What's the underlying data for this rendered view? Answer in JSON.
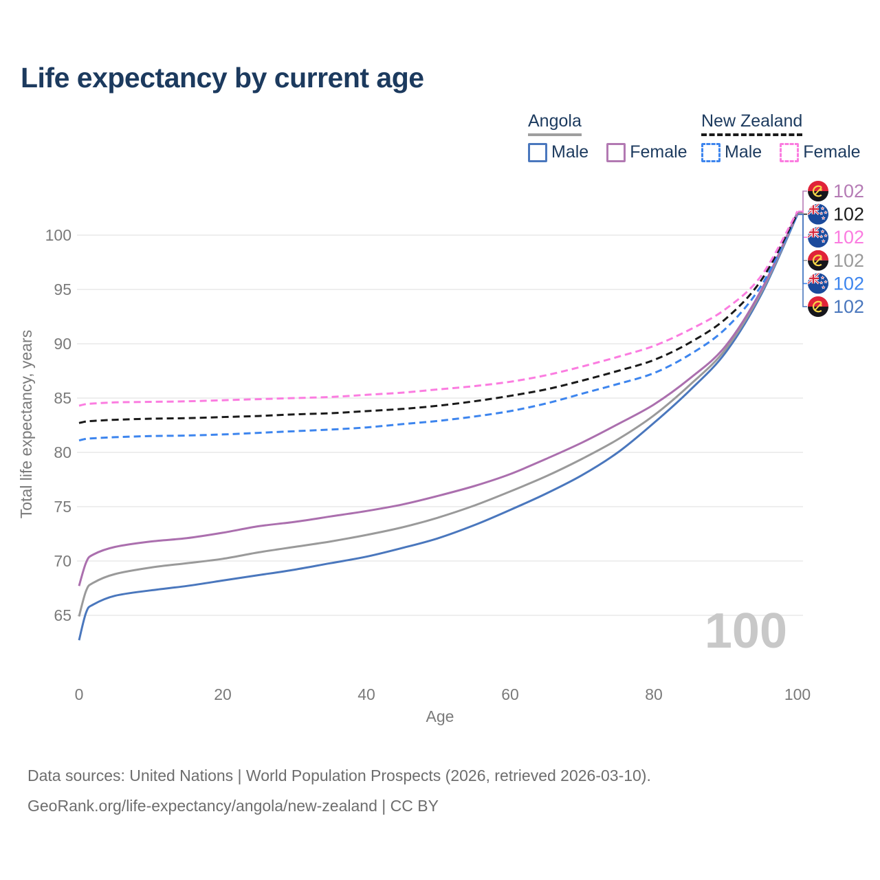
{
  "title": "Life expectancy by current age",
  "legend": {
    "groups": [
      {
        "label": "Angola",
        "line_style": "solid",
        "line_color": "#9e9e9e",
        "items": [
          {
            "label": "Male",
            "color": "#4a77bd",
            "dashed": false
          },
          {
            "label": "Female",
            "color": "#b279b2",
            "dashed": false
          }
        ]
      },
      {
        "label": "New Zealand",
        "line_style": "dashed",
        "line_color": "#1a1a1a",
        "items": [
          {
            "label": "Male",
            "color": "#3d85ee",
            "dashed": true
          },
          {
            "label": "Female",
            "color": "#fb7ce0",
            "dashed": true
          }
        ]
      }
    ]
  },
  "chart_data": {
    "type": "line",
    "title": "Life expectancy by current age",
    "xlabel": "Age",
    "ylabel": "Total life expectancy, years",
    "xlim": [
      0,
      100
    ],
    "ylim": [
      62,
      103
    ],
    "xticks": [
      0,
      20,
      40,
      60,
      80,
      100
    ],
    "yticks": [
      65,
      70,
      75,
      80,
      85,
      90,
      95,
      100
    ],
    "grid": "horizontal",
    "legend_position": "top-right",
    "x": [
      0,
      1,
      2,
      5,
      10,
      15,
      20,
      25,
      30,
      35,
      40,
      45,
      50,
      55,
      60,
      65,
      70,
      75,
      80,
      85,
      90,
      95,
      100
    ],
    "series": [
      {
        "name": "Angola Male",
        "country": "Angola",
        "sex": "Male",
        "color": "#4a77bd",
        "dashed": false,
        "values": [
          62.7,
          65.3,
          66.0,
          66.8,
          67.3,
          67.7,
          68.2,
          68.7,
          69.2,
          69.8,
          70.4,
          71.2,
          72.1,
          73.3,
          74.7,
          76.2,
          77.9,
          80.0,
          82.7,
          85.7,
          89.2,
          94.6,
          101.9
        ]
      },
      {
        "name": "Angola Both sexes",
        "country": "Angola",
        "sex": "Both",
        "color": "#9a9a9a",
        "dashed": false,
        "values": [
          64.9,
          67.3,
          68.0,
          68.8,
          69.4,
          69.8,
          70.2,
          70.8,
          71.3,
          71.8,
          72.4,
          73.1,
          74.0,
          75.1,
          76.4,
          77.8,
          79.4,
          81.2,
          83.4,
          86.2,
          89.5,
          94.8,
          102.0
        ]
      },
      {
        "name": "Angola Female",
        "country": "Angola",
        "sex": "Female",
        "color": "#ab6fae",
        "dashed": false,
        "values": [
          67.7,
          69.9,
          70.6,
          71.3,
          71.8,
          72.1,
          72.6,
          73.2,
          73.6,
          74.1,
          74.6,
          75.2,
          76.0,
          76.9,
          78.0,
          79.4,
          80.9,
          82.6,
          84.4,
          86.8,
          89.8,
          95.0,
          102.1
        ]
      },
      {
        "name": "New Zealand Male",
        "country": "New Zealand",
        "sex": "Male",
        "color": "#3d85ee",
        "dashed": true,
        "values": [
          81.1,
          81.25,
          81.3,
          81.4,
          81.5,
          81.55,
          81.65,
          81.8,
          81.95,
          82.1,
          82.3,
          82.6,
          82.9,
          83.3,
          83.8,
          84.5,
          85.4,
          86.3,
          87.3,
          89.0,
          91.4,
          95.4,
          101.9
        ]
      },
      {
        "name": "New Zealand Both sexes",
        "country": "New Zealand",
        "sex": "Both",
        "color": "#1a1a1a",
        "dashed": true,
        "values": [
          82.7,
          82.85,
          82.9,
          83.0,
          83.1,
          83.15,
          83.25,
          83.35,
          83.5,
          83.6,
          83.8,
          84.0,
          84.3,
          84.7,
          85.2,
          85.8,
          86.6,
          87.5,
          88.5,
          90.1,
          92.3,
          95.9,
          102.0
        ]
      },
      {
        "name": "New Zealand Female",
        "country": "New Zealand",
        "sex": "Female",
        "color": "#fb7ce0",
        "dashed": true,
        "values": [
          84.3,
          84.45,
          84.5,
          84.6,
          84.65,
          84.7,
          84.8,
          84.9,
          85.0,
          85.1,
          85.3,
          85.5,
          85.8,
          86.1,
          86.5,
          87.1,
          87.9,
          88.8,
          89.8,
          91.3,
          93.2,
          96.3,
          102.2
        ]
      }
    ],
    "end_labels": [
      {
        "series": "Angola Female",
        "flag": "angola",
        "value": "102",
        "color": "#b57bb5"
      },
      {
        "series": "New Zealand Both sexes",
        "flag": "new-zealand",
        "value": "102",
        "color": "#1d1d1d"
      },
      {
        "series": "New Zealand Female",
        "flag": "new-zealand",
        "value": "102",
        "color": "#fb7ce0"
      },
      {
        "series": "Angola Both sexes",
        "flag": "angola",
        "value": "102",
        "color": "#9a9a9a"
      },
      {
        "series": "New Zealand Male",
        "flag": "new-zealand",
        "value": "102",
        "color": "#3d85ee"
      },
      {
        "series": "Angola Male",
        "flag": "angola",
        "value": "102",
        "color": "#4a77bd"
      }
    ]
  },
  "watermark": "100",
  "footer": {
    "line1": "Data sources: United Nations | World Population Prospects (2026, retrieved 2026-03-10).",
    "line2": "GeoRank.org/life-expectancy/angola/new-zealand | CC BY"
  }
}
